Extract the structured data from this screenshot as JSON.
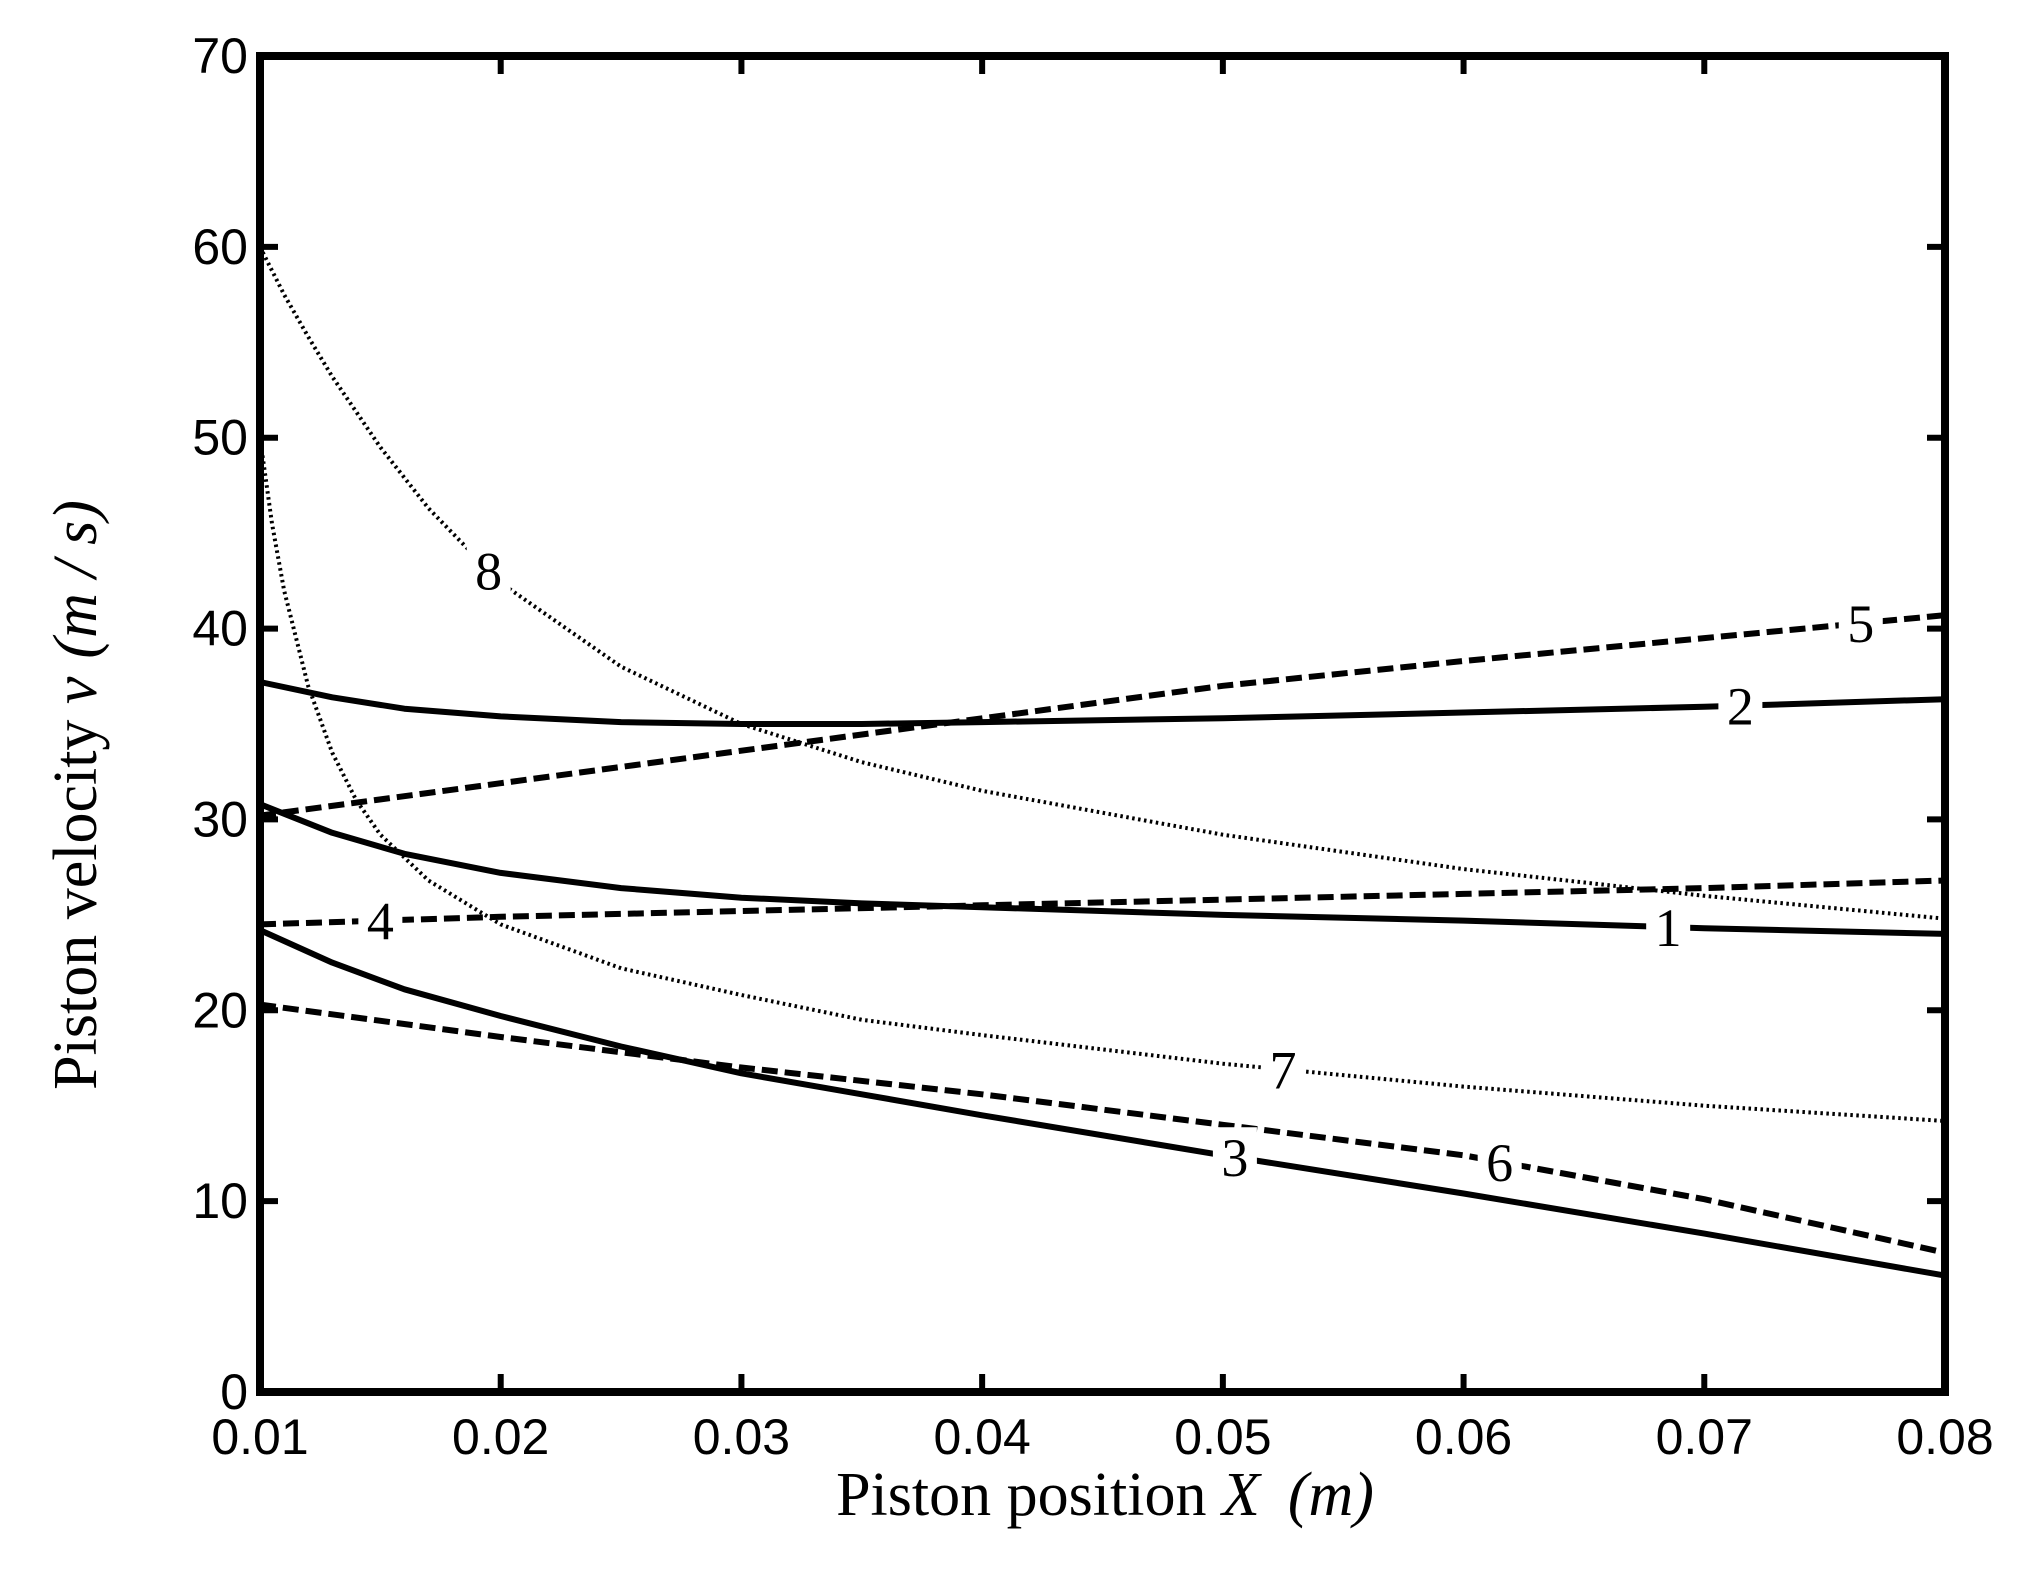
{
  "chart_data": {
    "type": "line",
    "title": "",
    "xlabel": {
      "prefix": "Piston position ",
      "var": "X",
      "unit": "(m)"
    },
    "ylabel": {
      "prefix": "Piston velocity ",
      "var": "v",
      "unit": "(m / s)"
    },
    "xlim": [
      0.01,
      0.08
    ],
    "ylim": [
      0,
      70
    ],
    "xticks": [
      "0.01",
      "0.02",
      "0.03",
      "0.04",
      "0.05",
      "0.06",
      "0.07",
      "0.08"
    ],
    "yticks": [
      "0",
      "10",
      "20",
      "30",
      "40",
      "50",
      "60",
      "70"
    ],
    "grid": false,
    "legend": "none",
    "series": [
      {
        "name": "1",
        "style": "solid",
        "x": [
          0.01,
          0.013,
          0.016,
          0.02,
          0.025,
          0.03,
          0.035,
          0.04,
          0.05,
          0.06,
          0.07,
          0.08
        ],
        "y": [
          30.8,
          29.3,
          28.2,
          27.2,
          26.4,
          25.9,
          25.6,
          25.4,
          25.0,
          24.7,
          24.3,
          24.0
        ],
        "label_x": 0.0685
      },
      {
        "name": "2",
        "style": "solid",
        "x": [
          0.01,
          0.013,
          0.016,
          0.02,
          0.025,
          0.03,
          0.035,
          0.04,
          0.05,
          0.06,
          0.07,
          0.08
        ],
        "y": [
          37.2,
          36.4,
          35.8,
          35.4,
          35.1,
          35.0,
          35.0,
          35.1,
          35.3,
          35.6,
          35.9,
          36.3
        ],
        "label_x": 0.0715
      },
      {
        "name": "3",
        "style": "solid",
        "x": [
          0.01,
          0.013,
          0.016,
          0.02,
          0.025,
          0.03,
          0.035,
          0.04,
          0.05,
          0.06,
          0.07,
          0.08
        ],
        "y": [
          24.2,
          22.5,
          21.1,
          19.7,
          18.1,
          16.7,
          15.6,
          14.5,
          12.4,
          10.4,
          8.3,
          6.1
        ],
        "label_x": 0.0505
      },
      {
        "name": "4",
        "style": "dashed",
        "x": [
          0.01,
          0.02,
          0.03,
          0.04,
          0.05,
          0.06,
          0.07,
          0.08
        ],
        "y": [
          24.5,
          24.9,
          25.2,
          25.5,
          25.8,
          26.1,
          26.4,
          26.8
        ],
        "label_x": 0.015
      },
      {
        "name": "5",
        "style": "dashed",
        "x": [
          0.01,
          0.02,
          0.03,
          0.04,
          0.05,
          0.06,
          0.07,
          0.08
        ],
        "y": [
          30.2,
          31.9,
          33.6,
          35.3,
          37.0,
          38.3,
          39.5,
          40.7
        ],
        "label_x": 0.0765
      },
      {
        "name": "6",
        "style": "dashed",
        "x": [
          0.01,
          0.02,
          0.03,
          0.04,
          0.05,
          0.06,
          0.07,
          0.08
        ],
        "y": [
          20.3,
          18.6,
          17.0,
          15.6,
          14.0,
          12.4,
          10.1,
          7.3
        ],
        "label_x": 0.0615
      },
      {
        "name": "7",
        "style": "dotted",
        "x": [
          0.01,
          0.0105,
          0.011,
          0.012,
          0.013,
          0.014,
          0.015,
          0.017,
          0.02,
          0.025,
          0.03,
          0.035,
          0.04,
          0.05,
          0.06,
          0.07,
          0.08
        ],
        "y": [
          50.0,
          45.5,
          42.0,
          37.0,
          33.5,
          31.0,
          29.2,
          26.8,
          24.5,
          22.2,
          20.8,
          19.5,
          18.7,
          17.2,
          16.0,
          15.0,
          14.2
        ],
        "label_x": 0.0525
      },
      {
        "name": "8",
        "style": "dotted",
        "x": [
          0.01,
          0.011,
          0.012,
          0.013,
          0.015,
          0.017,
          0.02,
          0.025,
          0.03,
          0.035,
          0.04,
          0.05,
          0.06,
          0.07,
          0.08
        ],
        "y": [
          60.0,
          57.5,
          55.3,
          53.2,
          49.5,
          46.3,
          42.4,
          38.0,
          35.0,
          33.0,
          31.5,
          29.2,
          27.4,
          26.0,
          24.8
        ],
        "label_x": 0.0195
      }
    ]
  }
}
